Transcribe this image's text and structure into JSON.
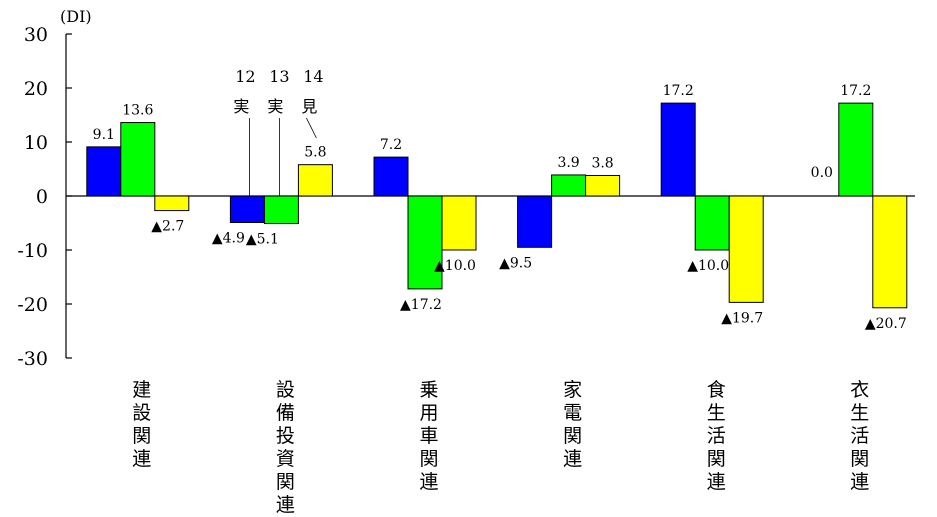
{
  "chart_data": {
    "type": "bar",
    "unit": "(DI)",
    "ylim": [
      -30,
      30
    ],
    "yticks": [
      30,
      20,
      10,
      0,
      -10,
      -20,
      -30
    ],
    "categories": [
      "建設関連",
      "設備投資関連",
      "乗用車関連",
      "家電関連",
      "食生活関連",
      "衣生活関連"
    ],
    "series": [
      {
        "name": "12実",
        "color": "#0000ff",
        "values": [
          9.1,
          -4.9,
          7.2,
          -9.5,
          17.2,
          0.0
        ]
      },
      {
        "name": "13実",
        "color": "#00ff00",
        "values": [
          13.6,
          -5.1,
          -17.2,
          3.9,
          -10.0,
          17.2
        ]
      },
      {
        "name": "14見",
        "color": "#ffff00",
        "values": [
          -2.7,
          5.8,
          -10.0,
          3.8,
          -19.7,
          -20.7
        ]
      }
    ],
    "data_labels": [
      [
        "9.1",
        "▲4.9",
        "7.2",
        "▲9.5",
        "17.2",
        "0.0"
      ],
      [
        "13.6",
        "▲5.1",
        "▲17.2",
        "3.9",
        "▲10.0",
        "17.2"
      ],
      [
        "▲2.7",
        "5.8",
        "▲10.0",
        "3.8",
        "▲19.7",
        "▲20.7"
      ]
    ],
    "legend": [
      {
        "num": "12",
        "kind": "実"
      },
      {
        "num": "13",
        "kind": "実"
      },
      {
        "num": "14",
        "kind": "見"
      }
    ],
    "grid": false
  }
}
